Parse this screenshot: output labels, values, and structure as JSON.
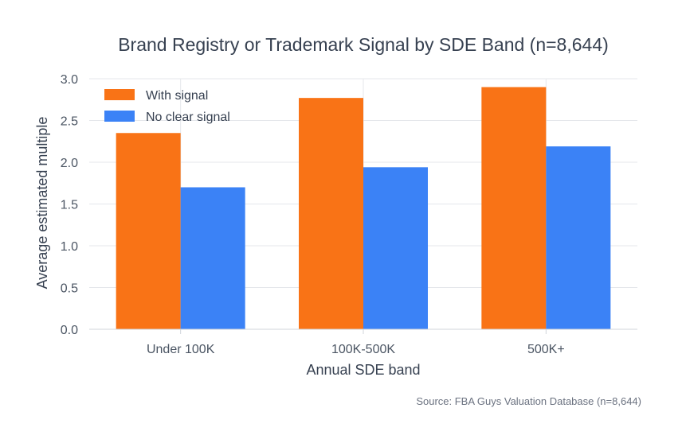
{
  "chart_data": {
    "type": "bar",
    "title": "Brand Registry or Trademark Signal by SDE Band (n=8,644)",
    "xlabel": "Annual SDE band",
    "ylabel": "Average estimated multiple",
    "categories": [
      "Under 100K",
      "100K-500K",
      "500K+"
    ],
    "series": [
      {
        "name": "With signal",
        "values": [
          2.35,
          2.77,
          2.9
        ],
        "color": "#f97316"
      },
      {
        "name": "No clear signal",
        "values": [
          1.7,
          1.94,
          2.19
        ],
        "color": "#3b82f6"
      }
    ],
    "ylim": [
      0,
      3.0
    ],
    "yticks": [
      "0.0",
      "0.5",
      "1.0",
      "1.5",
      "2.0",
      "2.5",
      "3.0"
    ],
    "ytick_values": [
      0,
      0.5,
      1.0,
      1.5,
      2.0,
      2.5,
      3.0
    ],
    "grid": true,
    "legend_position": "top-left",
    "source": "Source: FBA Guys Valuation Database (n=8,644)"
  }
}
